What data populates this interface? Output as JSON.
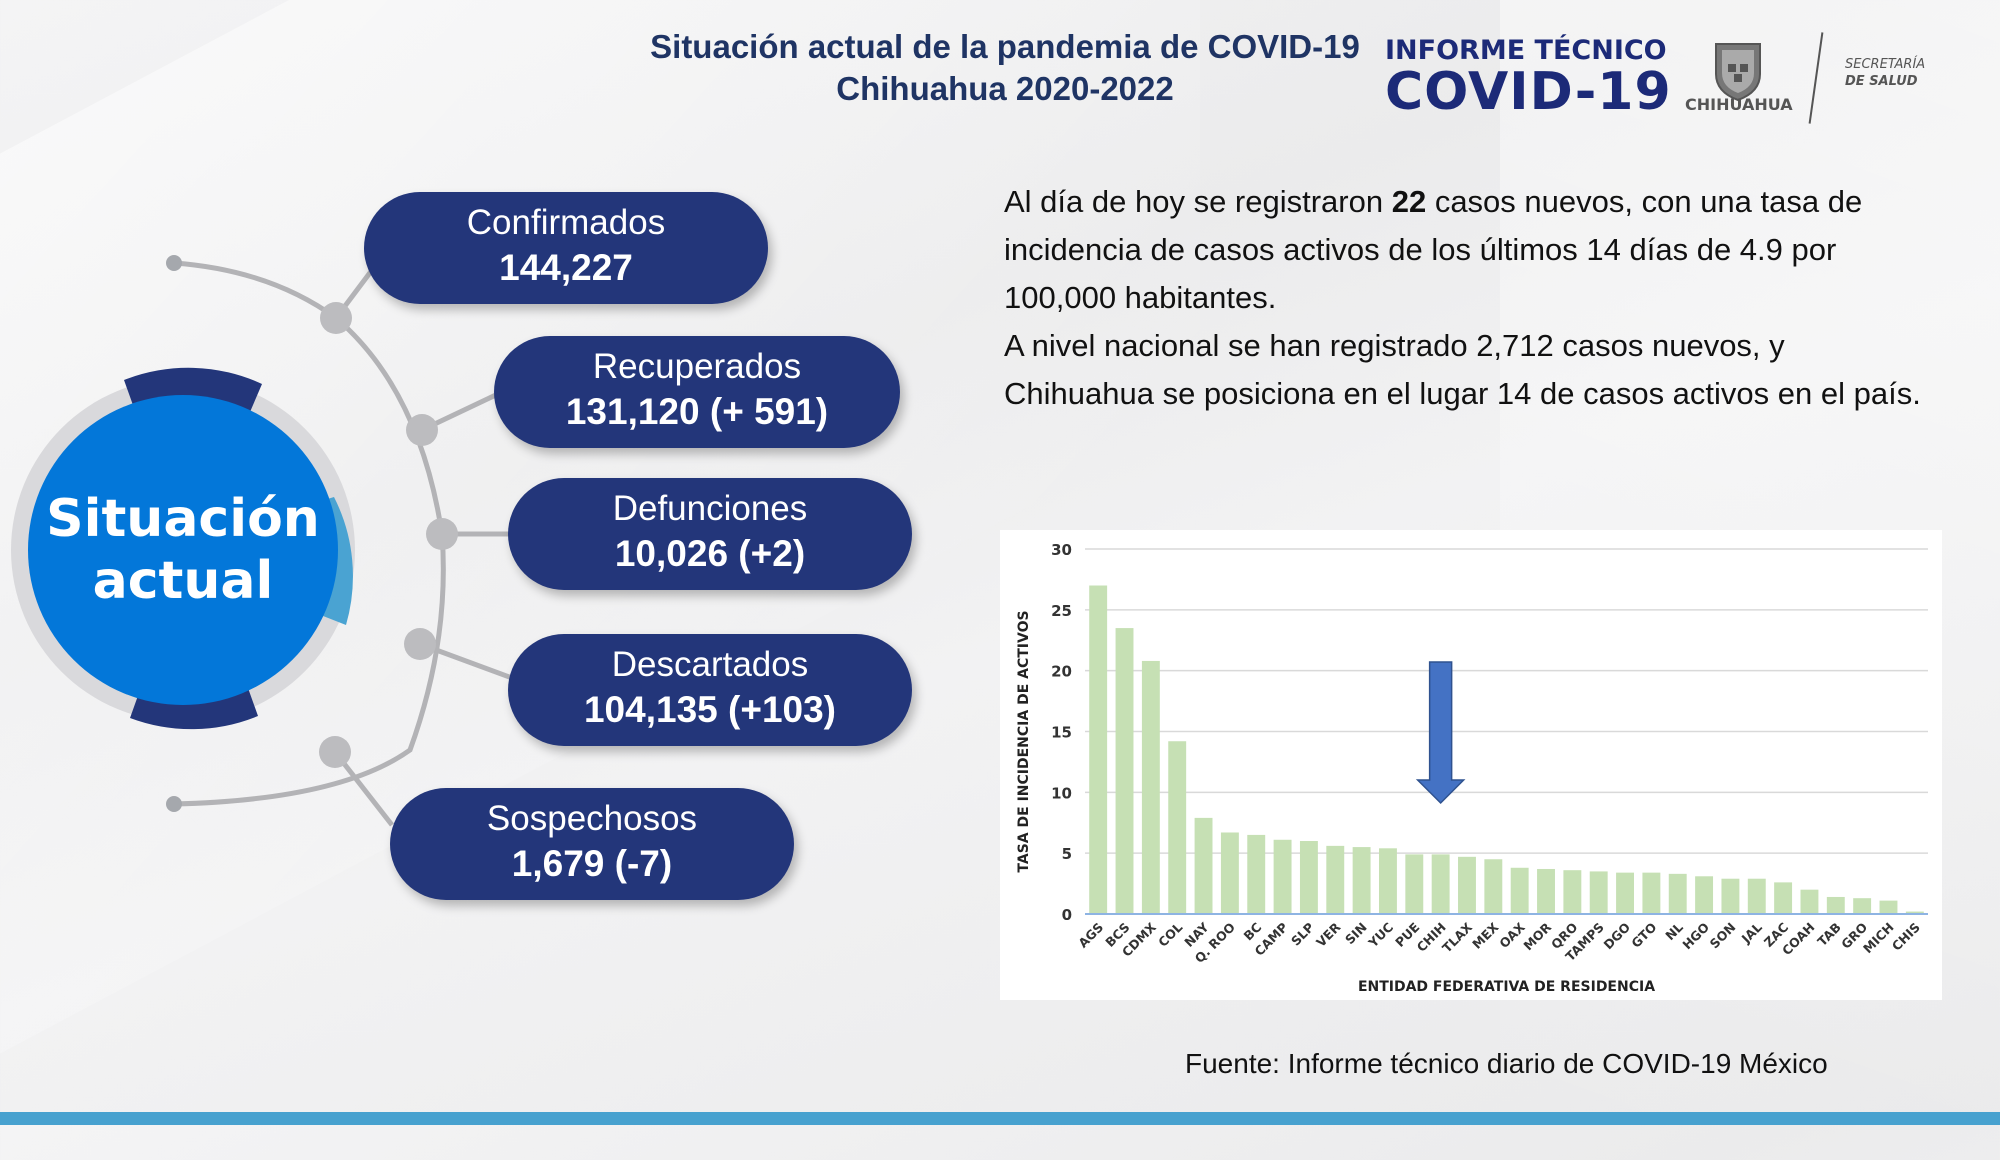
{
  "header": {
    "title_line1": "Situación actual de la pandemia de COVID-19",
    "title_line2": "Chihuahua 2020-2022",
    "brand_line1": "INFORME TÉCNICO",
    "brand_line2": "COVID-19",
    "logo_label": "CHIHUAHUA",
    "secretaria_line1": "SECRETARÍA",
    "secretaria_line2": "DE SALUD"
  },
  "hub": {
    "line1": "Situación",
    "line2": "actual"
  },
  "stats": [
    {
      "label": "Confirmados",
      "value": "144,227"
    },
    {
      "label": "Recuperados",
      "value": "131,120 (+ 591)"
    },
    {
      "label": "Defunciones",
      "value": "10,026 (+2)"
    },
    {
      "label": "Descartados",
      "value": "104,135 (+103)"
    },
    {
      "label": "Sospechosos",
      "value": "1,679 (-7)"
    }
  ],
  "narrative": {
    "p1_before": "Al día de hoy se registraron ",
    "p1_bold": "22",
    "p1_after": " casos nuevos, con una tasa de incidencia de casos activos de los últimos 14 días de 4.9 por 100,000 habitantes.",
    "p2": "A nivel nacional se han registrado 2,712 casos nuevos, y Chihuahua se posiciona en el lugar 14 de casos activos en el país."
  },
  "source": "Fuente: Informe técnico diario de COVID-19 México",
  "colors": {
    "navy": "#23367a",
    "hub_blue": "#0377d9",
    "bar_green": "#c6e0b4",
    "arrow_blue": "#4472c4",
    "bottom_bar": "#47a1cf"
  },
  "chart_data": {
    "type": "bar",
    "title": "",
    "xlabel": "ENTIDAD FEDERATIVA DE RESIDENCIA",
    "ylabel": "TASA DE INCIDENCIA DE ACTIVOS",
    "ylim": [
      0,
      30
    ],
    "yticks": [
      0,
      5,
      10,
      15,
      20,
      25,
      30
    ],
    "grid": true,
    "legend": "none",
    "annotation": "Blue down arrow pointing at CHIH",
    "highlight": "CHIH",
    "categories": [
      "AGS",
      "BCS",
      "CDMX",
      "COL",
      "NAY",
      "Q. ROO",
      "BC",
      "CAMP",
      "SLP",
      "VER",
      "SIN",
      "YUC",
      "PUE",
      "CHIH",
      "TLAX",
      "MEX",
      "OAX",
      "MOR",
      "QRO",
      "TAMPS",
      "DGO",
      "GTO",
      "NL",
      "HGO",
      "SON",
      "JAL",
      "ZAC",
      "COAH",
      "TAB",
      "GRO",
      "MICH",
      "CHIS"
    ],
    "values": [
      27.0,
      23.5,
      20.8,
      14.2,
      7.9,
      6.7,
      6.5,
      6.1,
      6.0,
      5.6,
      5.5,
      5.4,
      4.9,
      4.9,
      4.7,
      4.5,
      3.8,
      3.7,
      3.6,
      3.5,
      3.4,
      3.4,
      3.3,
      3.1,
      2.9,
      2.9,
      2.6,
      2.0,
      1.4,
      1.3,
      1.1,
      0.2
    ]
  }
}
